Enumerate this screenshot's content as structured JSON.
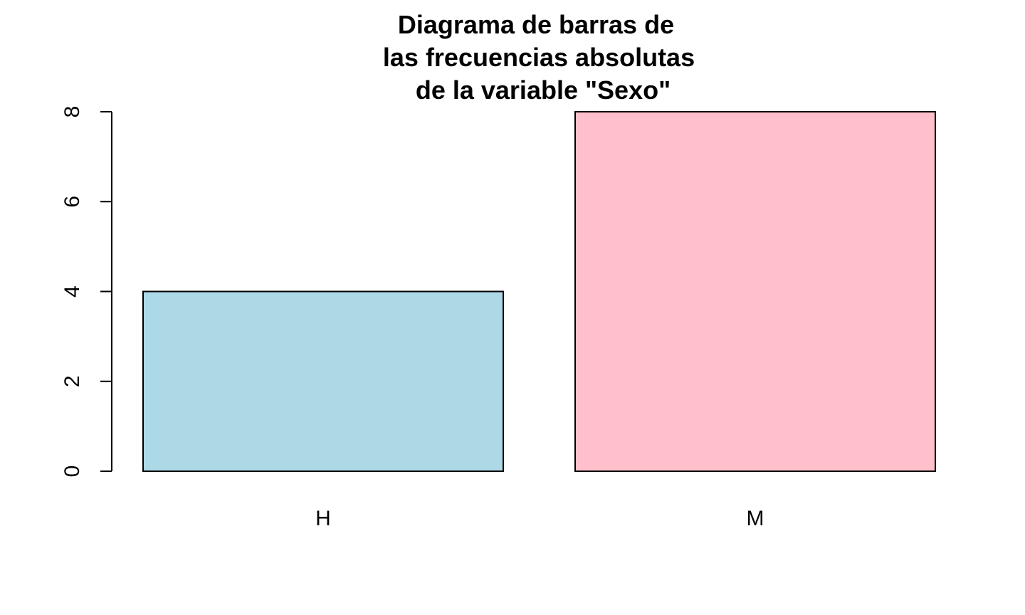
{
  "chart_data": {
    "type": "bar",
    "title_lines": [
      "Diagrama de barras de",
      "las frecuencias absolutas",
      "de la variable \"Sexo\""
    ],
    "xlabel": "",
    "ylabel": "",
    "categories": [
      "H",
      "M"
    ],
    "values": [
      4,
      8
    ],
    "colors": [
      "#ADD8E6",
      "#FFC0CB"
    ],
    "ylim": [
      0,
      8
    ],
    "yticks": [
      0,
      2,
      4,
      6,
      8
    ],
    "grid": false,
    "legend": "none"
  }
}
